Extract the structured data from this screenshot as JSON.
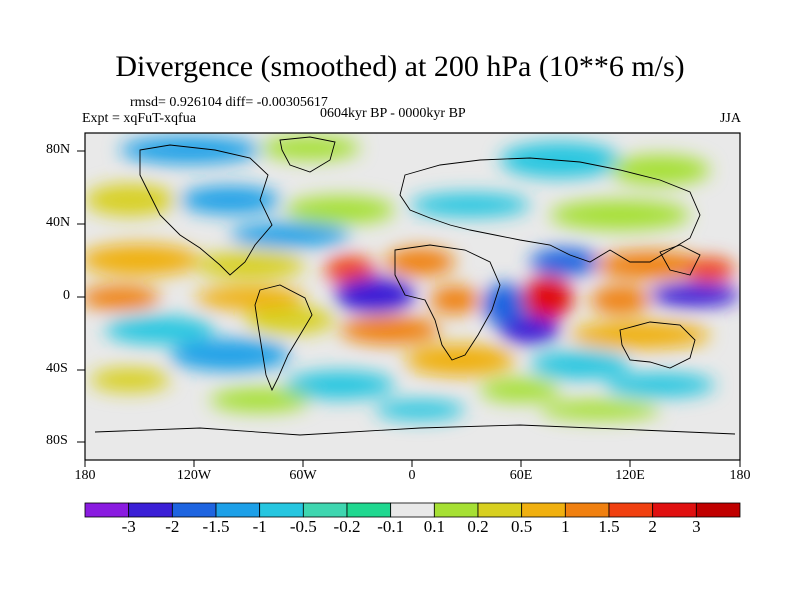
{
  "title": "Divergence (smoothed) at 200 hPa (10**6 m/s)",
  "stats": "rmsd= 0.926104 diff= -0.00305617",
  "experiment": "Expt = xqFuT-xqfua",
  "period": "0604kyr BP - 0000kyr BP",
  "season": "JJA",
  "lat_ticks": [
    "80N",
    "40N",
    "0",
    "40S",
    "80S"
  ],
  "lon_ticks": [
    "180",
    "120W",
    "60W",
    "0",
    "60E",
    "120E",
    "180"
  ],
  "colorbar": {
    "labels": [
      "-3",
      "-2",
      "-1.5",
      "-1",
      "-0.5",
      "-0.2",
      "-0.1",
      "0.1",
      "0.2",
      "0.5",
      "1",
      "1.5",
      "2",
      "3"
    ],
    "colors": [
      "#8a1be0",
      "#3b1fd6",
      "#1e64e0",
      "#1da0e8",
      "#26c6e0",
      "#3fd6b0",
      "#20d890",
      "#e9e9e9",
      "#a6e034",
      "#d8d020",
      "#f0b010",
      "#f08010",
      "#f04010",
      "#e01010",
      "#c00000"
    ]
  }
}
